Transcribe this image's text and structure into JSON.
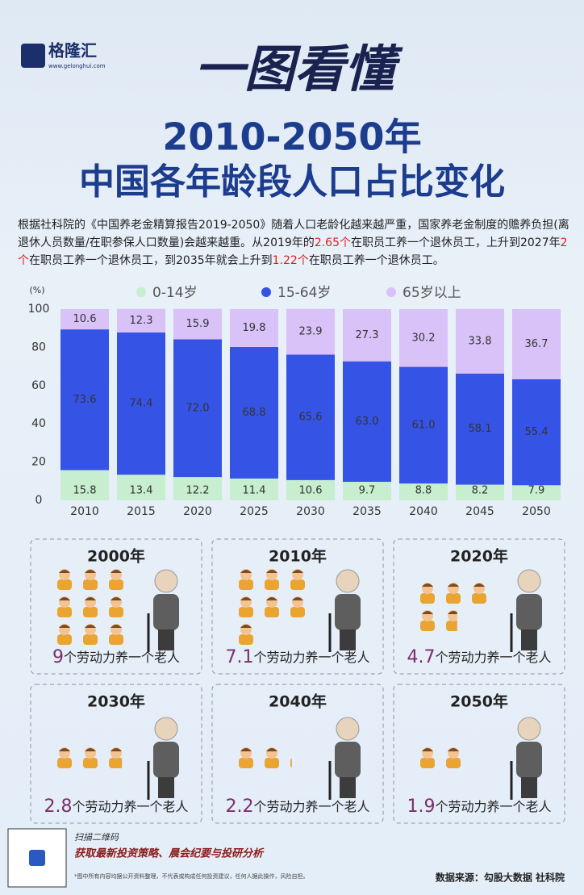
{
  "header": {
    "logo": "格隆汇",
    "site": "www.gelonghui.com",
    "banner": "一图看懂",
    "title_line1": "2010-2050年",
    "title_line2": "中国各年龄段人口占比变化"
  },
  "intro": [
    "根据社科院的《中国养老金精算报告2019-2050》随着人口老龄化越来越严重，国家养老金制度的赡养负担(离退休人员数量/在职参保人口数量)会越来越重。从2019年的",
    "2.65个",
    "在职员工养一个退休员工，上升到2027年",
    "2个",
    "在职员工养一个退休员工，到2035年就会上升到",
    "1.22个",
    "在职员工养一个退休员工。"
  ],
  "chart_data": {
    "type": "stacked-bar",
    "y_label": "(%)",
    "categories": [
      "2010",
      "2015",
      "2020",
      "2025",
      "2030",
      "2035",
      "2040",
      "2045",
      "2050"
    ],
    "series": [
      {
        "name": "0-14岁",
        "color": "#c6eecf",
        "values": [
          15.8,
          13.4,
          12.2,
          11.4,
          10.6,
          9.7,
          8.8,
          8.2,
          7.9
        ]
      },
      {
        "name": "15-64岁",
        "color": "#3554e6",
        "values": [
          73.6,
          74.4,
          72.0,
          68.8,
          65.6,
          63.0,
          61.0,
          58.1,
          55.4
        ],
        "value_labels": [
          "73.6",
          "74.4",
          "72.0",
          "68.8",
          "65.6",
          "63.0",
          "61.0",
          "58.1",
          "55.4"
        ]
      },
      {
        "name": "65岁以上",
        "color": "#d9c2f7",
        "values": [
          10.6,
          12.3,
          15.9,
          19.8,
          23.9,
          27.3,
          30.2,
          33.8,
          36.7
        ]
      }
    ],
    "ylim": [
      0,
      100
    ],
    "yticks": [
      0,
      20,
      40,
      60,
      80,
      100
    ],
    "grid": false,
    "legend": "top"
  },
  "panels": [
    {
      "year": "2000年",
      "ratio": 9,
      "caption": "个劳动力养一个老人"
    },
    {
      "year": "2010年",
      "ratio": 7.1,
      "caption": "个劳动力养一个老人"
    },
    {
      "year": "2020年",
      "ratio": 4.7,
      "caption": "个劳动力养一个老人"
    },
    {
      "year": "2030年",
      "ratio": 2.8,
      "caption": "个劳动力养一个老人"
    },
    {
      "year": "2040年",
      "ratio": 2.2,
      "caption": "个劳动力养一个老人"
    },
    {
      "year": "2050年",
      "ratio": 1.9,
      "caption": "个劳动力养一个老人"
    }
  ],
  "footer": {
    "scan": "扫描二维码",
    "promo": "获取最新投资策略、晨会纪要与投研分析",
    "disclaimer": "*图中所有内容均据公开资料整理，不代表或构成任何投资建议，任何人据此操作，风险自担。",
    "source": "数据来源：勾股大数据 社科院"
  }
}
